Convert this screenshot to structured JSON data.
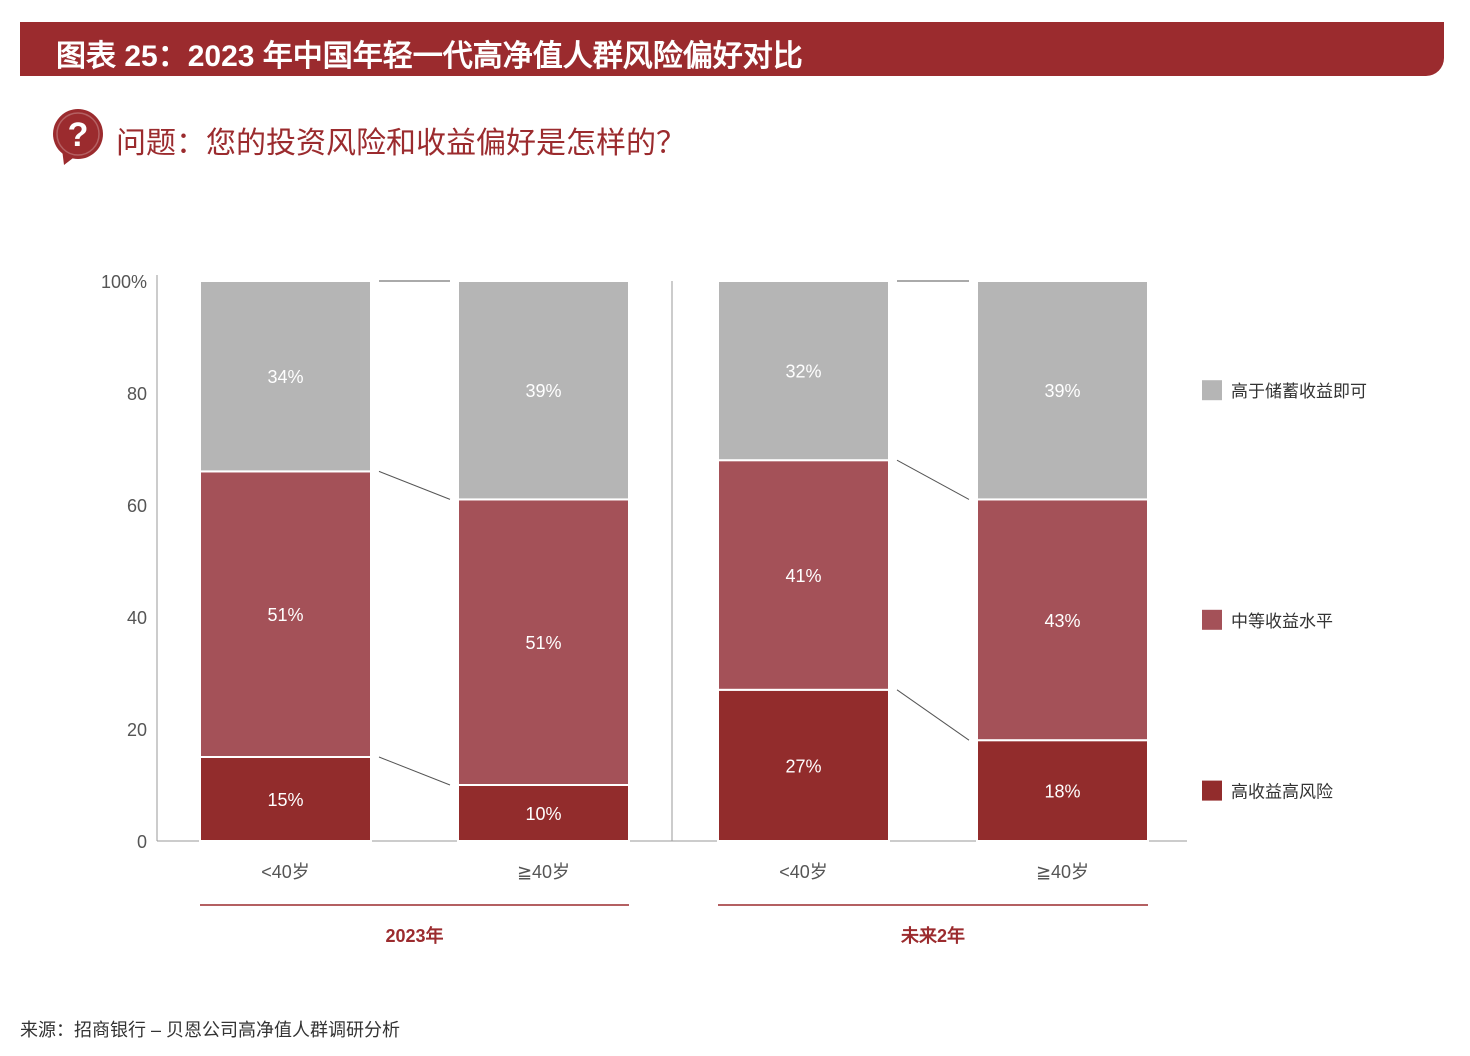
{
  "header": {
    "title": "图表 25：2023 年中国年轻一代高净值人群风险偏好对比",
    "question": "问题：您的投资风险和收益偏好是怎样的？"
  },
  "source": "来源：招商银行 – 贝恩公司高净值人群调研分析",
  "colors": {
    "brand": "#9b2b2e",
    "high_risk": "#922c2c",
    "medium": "#a45158",
    "savings": "#b5b5b5"
  },
  "chart_data": {
    "type": "bar",
    "stacked": true,
    "ylim": [
      0,
      100
    ],
    "yticks": [
      "0",
      "20",
      "40",
      "60",
      "80",
      "100%"
    ],
    "groups": [
      "2023年",
      "未来2年"
    ],
    "categories": [
      "<40岁",
      "≧40岁",
      "<40岁",
      "≧40岁"
    ],
    "category_group": [
      0,
      0,
      1,
      1
    ],
    "series": [
      {
        "name": "高收益高风险",
        "color": "#922c2c",
        "values": [
          15,
          10,
          27,
          18
        ],
        "labels": [
          "15%",
          "10%",
          "27%",
          "18%"
        ]
      },
      {
        "name": "中等收益水平",
        "color": "#a45158",
        "values": [
          51,
          51,
          41,
          43
        ],
        "labels": [
          "51%",
          "51%",
          "41%",
          "43%"
        ]
      },
      {
        "name": "高于储蓄收益即可",
        "color": "#b5b5b5",
        "values": [
          34,
          39,
          32,
          39
        ],
        "labels": [
          "34%",
          "39%",
          "32%",
          "39%"
        ]
      }
    ],
    "legend": [
      "高于储蓄收益即可",
      "中等收益水平",
      "高收益高风险"
    ],
    "legend_placement": "right"
  }
}
